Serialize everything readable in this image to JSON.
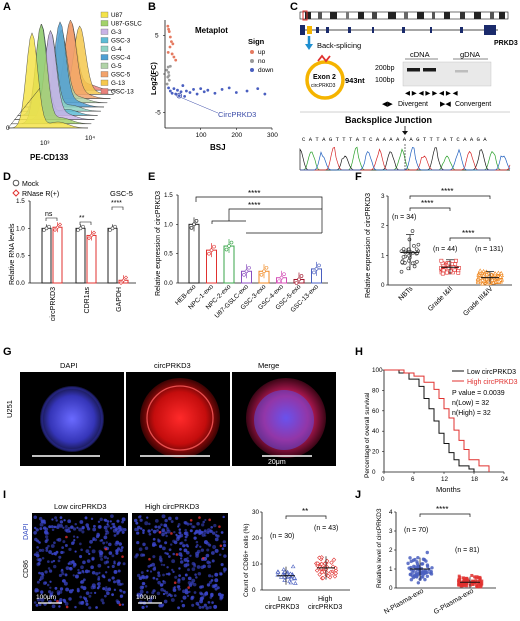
{
  "panel_letters": [
    "A",
    "B",
    "C",
    "D",
    "E",
    "F",
    "G",
    "H",
    "I",
    "J"
  ],
  "colors": {
    "red": "#e0312f",
    "blue": "#4a5fc0",
    "orange": "#f08a24",
    "green": "#3aa64a",
    "purple": "#8a4fbf",
    "dark_red": "#a0162b",
    "gray": "#888888"
  },
  "panel_a": {
    "xlabel": "PE-CD133",
    "tick_labels": [
      "10³",
      "10⁴",
      "0"
    ],
    "legend": [
      "U87",
      "U87-GSLC",
      "G-3",
      "GSC-3",
      "G-4",
      "GSC-4",
      "G-5",
      "GSC-5",
      "G-13",
      "GSC-13"
    ],
    "legend_colors": [
      "#f4e34a",
      "#a2d26b",
      "#c9b3e6",
      "#5dbbd5",
      "#8fd3c3",
      "#4f9fd3",
      "#b1d3a8",
      "#f2a36c",
      "#f5c84c",
      "#e9817b"
    ]
  },
  "panel_b": {
    "title": "Metaplot",
    "xlabel": "BSJ",
    "ylabel": "Log2(FC)",
    "x_ticks": [
      "100",
      "200",
      "300"
    ],
    "y_ticks": [
      "-5",
      "0",
      "5"
    ],
    "annotation": "CircPRKD3",
    "legend_title": "Sign",
    "legend": [
      {
        "label": "up",
        "color": "#e57a60"
      },
      {
        "label": "no",
        "color": "#9a9a9a"
      },
      {
        "label": "down",
        "color": "#4a5fc0"
      }
    ]
  },
  "panel_c": {
    "back_splicing": "Back-splicing",
    "exon_line1": "Exon 2",
    "exon_line2": "circPRKD3",
    "length": "943nt",
    "gene": "PRKD3",
    "gel_cdna": "cDNA",
    "gel_gdna": "gDNA",
    "size_200": "200bp",
    "size_100": "100bp",
    "divergent": "Divergent",
    "convergent": "Convergent",
    "junction": "Backsplice Junction",
    "sequence": "C A T A G T T T A T C A A A A A A G T T T A T C A A G A"
  },
  "panel_d": {
    "ylabel": "Relative RNA levels",
    "legend": [
      "Mock",
      "RNase R(+)"
    ],
    "group_label": "GSC-5",
    "categories": [
      "circPRKD3",
      "CDR1as",
      "GAPDH"
    ],
    "significance": [
      "ns",
      "**",
      "****"
    ],
    "y_ticks": [
      "0.0",
      "0.5",
      "1.0",
      "1.5"
    ]
  },
  "panel_e": {
    "ylabel": "Relative expression of circPRKD3",
    "categories": [
      "HEB-exo",
      "NPC-1-exo",
      "NPC-2-exo",
      "U87-GSLC-exo",
      "GSC-3-exo",
      "GSC-4-exo",
      "GSC-5-exo",
      "GSC-13-exo"
    ],
    "significance": [
      "****",
      "****"
    ],
    "y_ticks": [
      "0.0",
      "0.5",
      "1.0",
      "1.5"
    ]
  },
  "panel_f": {
    "ylabel": "Relative expression of circPRKD3",
    "categories": [
      "NBTs",
      "Grade I&II",
      "Grade III&IV"
    ],
    "n_labels": [
      "(n = 34)",
      "(n = 44)",
      "(n = 131)"
    ],
    "significance": [
      "****",
      "****",
      "****"
    ],
    "y_ticks": [
      "0",
      "1",
      "2",
      "3"
    ]
  },
  "panel_g": {
    "titles": [
      "DAPI",
      "circPRKD3",
      "Merge"
    ],
    "cell_line": "U251",
    "scale": "20μm"
  },
  "panel_h": {
    "ylabel": "Percentage of overall survival",
    "xlabel": "Months",
    "legend": [
      "Low circPRKD3",
      "High circPRKD3"
    ],
    "stats": [
      "P value = 0.0039",
      "n(Low) = 32",
      "n(High) = 32"
    ],
    "x_ticks": [
      "0",
      "6",
      "12",
      "18",
      "24"
    ],
    "y_ticks": [
      "0",
      "20",
      "40",
      "60",
      "80",
      "100"
    ]
  },
  "panel_i": {
    "image_titles": [
      "Low circPRKD3",
      "High circPRKD3"
    ],
    "side_labels": [
      "DAPI",
      "CD86"
    ],
    "scale": "100μm",
    "ylabel": "Count of CD86+ cells (%)",
    "categories": [
      "Low circPRKD3",
      "High circPRKD3"
    ],
    "n_labels": [
      "(n = 30)",
      "(n = 43)"
    ],
    "significance": "**",
    "y_ticks": [
      "0",
      "10",
      "20",
      "30"
    ]
  },
  "panel_j": {
    "ylabel": "Relative level of circPRKD3",
    "categories": [
      "N-Plasma-exo",
      "G-Plasma-exo"
    ],
    "n_labels": [
      "(n = 70)",
      "(n = 81)"
    ],
    "significance": "****",
    "y_ticks": [
      "0",
      "1",
      "2",
      "3",
      "4"
    ]
  },
  "chart_data": [
    {
      "panel": "B",
      "type": "scatter",
      "title": "Metaplot",
      "xlabel": "BSJ",
      "ylabel": "Log2(FC)",
      "xlim": [
        0,
        300
      ],
      "ylim": [
        -7,
        7
      ],
      "series": [
        {
          "name": "up",
          "x": [
            8,
            12,
            15,
            18,
            22,
            10,
            14,
            9,
            20,
            25,
            30
          ],
          "y": [
            6.2,
            5.5,
            4.8,
            4.2,
            3.9,
            5.8,
            3.5,
            2.8,
            2.6,
            2.2,
            1.8
          ]
        },
        {
          "name": "no",
          "x": [
            5,
            8,
            10,
            12,
            15,
            6,
            9,
            11
          ],
          "y": [
            0.5,
            -0.4,
            0.2,
            -0.8,
            1.0,
            -1.3,
            0.9,
            -0.2
          ]
        },
        {
          "name": "down",
          "x": [
            10,
            15,
            20,
            25,
            30,
            35,
            40,
            45,
            50,
            55,
            60,
            70,
            80,
            90,
            100,
            110,
            120,
            140,
            160,
            180,
            200,
            230,
            260,
            280
          ],
          "y": [
            -1.8,
            -2.2,
            -2.5,
            -1.9,
            -2.6,
            -2.1,
            -2.8,
            -2.3,
            -1.5,
            -2.9,
            -2.2,
            -2.4,
            -2.0,
            -2.6,
            -1.9,
            -2.3,
            -2.1,
            -2.5,
            -2.0,
            -1.8,
            -2.4,
            -2.2,
            -1.9,
            -2.6
          ]
        }
      ]
    },
    {
      "panel": "D",
      "type": "bar",
      "ylabel": "Relative RNA levels",
      "ylim": [
        0,
        1.5
      ],
      "categories": [
        "circPRKD3",
        "CDR1as",
        "GAPDH"
      ],
      "series": [
        {
          "name": "Mock",
          "values": [
            1.0,
            1.0,
            1.0
          ]
        },
        {
          "name": "RNase R(+)",
          "values": [
            1.02,
            0.87,
            0.05
          ]
        }
      ]
    },
    {
      "panel": "E",
      "type": "bar",
      "ylabel": "Relative expression of circPRKD3",
      "ylim": [
        0,
        1.5
      ],
      "categories": [
        "HEB-exo",
        "NPC-1-exo",
        "NPC-2-exo",
        "U87-GSLC-exo",
        "GSC-3-exo",
        "GSC-4-exo",
        "GSC-5-exo",
        "GSC-13-exo"
      ],
      "values": [
        1.0,
        0.56,
        0.63,
        0.2,
        0.2,
        0.09,
        0.06,
        0.24
      ]
    },
    {
      "panel": "F",
      "type": "scatter",
      "ylabel": "Relative expression of circPRKD3",
      "ylim": [
        0,
        3
      ],
      "categories": [
        "NBTs",
        "Grade I&II",
        "Grade III&IV"
      ],
      "means": [
        1.1,
        0.6,
        0.25
      ],
      "sd": [
        0.6,
        0.25,
        0.2
      ]
    },
    {
      "panel": "H",
      "type": "line",
      "xlabel": "Months",
      "ylabel": "Percentage of overall survival",
      "xlim": [
        0,
        24
      ],
      "ylim": [
        0,
        100
      ],
      "series": [
        {
          "name": "Low circPRKD3",
          "x": [
            0,
            3,
            5,
            7,
            8,
            9,
            10,
            11,
            12,
            13,
            14,
            15,
            17,
            18
          ],
          "y": [
            100,
            97,
            91,
            84,
            72,
            62,
            50,
            38,
            28,
            19,
            12,
            6,
            3,
            0
          ]
        },
        {
          "name": "High circPRKD3",
          "x": [
            0,
            4,
            6,
            8,
            10,
            11,
            12,
            13,
            14,
            15,
            16,
            17,
            19,
            21
          ],
          "y": [
            100,
            97,
            94,
            88,
            81,
            72,
            62,
            53,
            41,
            31,
            22,
            12,
            6,
            0
          ]
        }
      ]
    },
    {
      "panel": "I",
      "type": "scatter",
      "ylabel": "Count of CD86+ cells (%)",
      "ylim": [
        0,
        30
      ],
      "categories": [
        "Low circPRKD3",
        "High circPRKD3"
      ],
      "means": [
        5.5,
        8.5
      ],
      "sd": [
        3.5,
        4.5
      ]
    },
    {
      "panel": "J",
      "type": "scatter",
      "ylabel": "Relative level of circPRKD3",
      "ylim": [
        0,
        4
      ],
      "categories": [
        "N-Plasma-exo",
        "G-Plasma-exo"
      ],
      "means": [
        1.0,
        0.3
      ],
      "sd": [
        0.6,
        0.3
      ]
    }
  ]
}
